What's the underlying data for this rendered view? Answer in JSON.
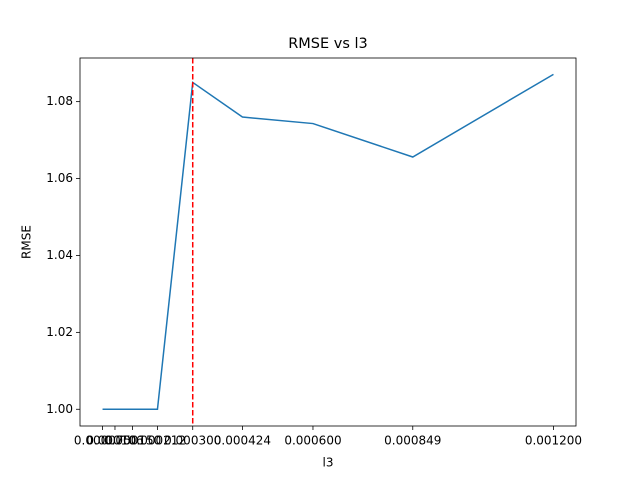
{
  "chart_data": {
    "type": "line",
    "title": "RMSE vs l3",
    "x_label": "l3",
    "y_label": "RMSE",
    "x": [
      7.5e-05,
      0.000106,
      0.00015,
      0.000212,
      0.0003,
      0.000424,
      0.0006,
      0.000849,
      0.0012
    ],
    "series": [
      {
        "name": "RMSE",
        "color": "#1f77b4",
        "values": [
          1.0,
          1.0,
          1.0,
          1.0,
          1.085,
          1.076,
          1.0743,
          1.0656,
          1.0871
        ]
      }
    ],
    "vline": {
      "x": 0.0003,
      "color": "#ff0000",
      "style": "dashed"
    },
    "xlim": [
      1.875e-05,
      0.00125625
    ],
    "xticks": [
      {
        "value": 7.5e-05,
        "label": "0.000075"
      },
      {
        "value": 0.000106,
        "label": "0.000106"
      },
      {
        "value": 0.00015,
        "label": "0.000150"
      },
      {
        "value": 0.000212,
        "label": "0.000212"
      },
      {
        "value": 0.0003,
        "label": "0.000300"
      },
      {
        "value": 0.000424,
        "label": "0.000424"
      },
      {
        "value": 0.0006,
        "label": "0.000600"
      },
      {
        "value": 0.000849,
        "label": "0.000849"
      },
      {
        "value": 0.0012,
        "label": "0.001200"
      }
    ],
    "ylim": [
      0.99565,
      1.09135
    ],
    "yticks": [
      {
        "value": 1.0,
        "label": "1.00"
      },
      {
        "value": 1.02,
        "label": "1.02"
      },
      {
        "value": 1.04,
        "label": "1.04"
      },
      {
        "value": 1.06,
        "label": "1.06"
      },
      {
        "value": 1.08,
        "label": "1.08"
      }
    ],
    "grid": false
  }
}
